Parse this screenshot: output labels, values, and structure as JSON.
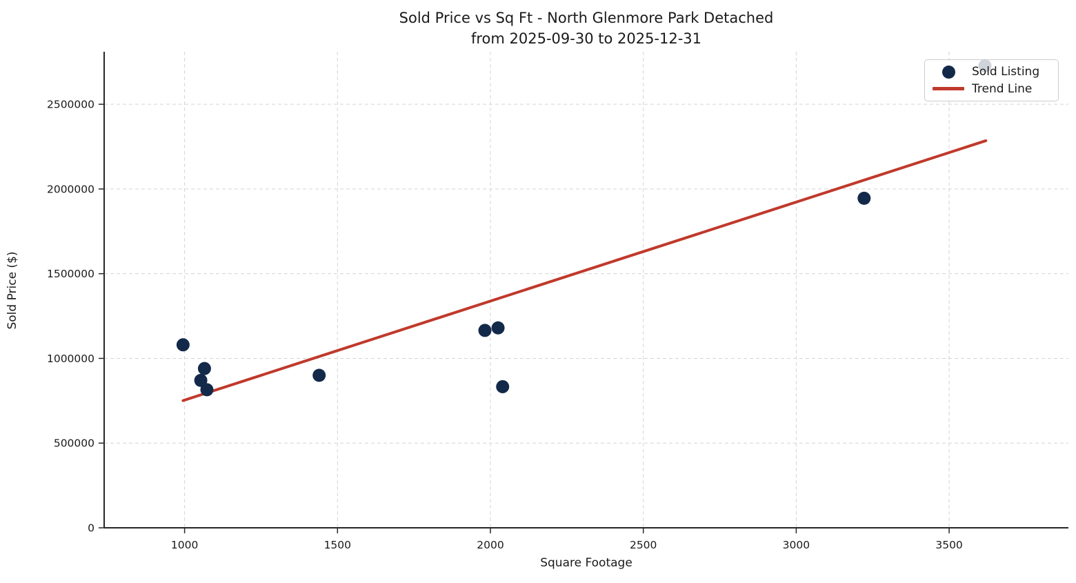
{
  "figure": {
    "title_line1": "Sold Price vs Sq Ft - North Glenmore Park Detached",
    "title_line2": "from 2025-09-30 to 2025-12-31"
  },
  "legend": {
    "position": "upper-right",
    "items": [
      {
        "label": "Sold Listing",
        "marker": "dot-icon",
        "color": "#13294a"
      },
      {
        "label": "Trend Line",
        "marker": "line-icon",
        "color": "#c0392b"
      }
    ]
  },
  "colors": {
    "scatter": "#13294a",
    "trend": "#c0392b",
    "spine": "#262626",
    "grid": "#d4d4d4",
    "text": "#1a1a1a",
    "background": "#ffffff"
  },
  "chart_data": {
    "type": "scatter",
    "title": "Sold Price vs Sq Ft - North Glenmore Park Detached",
    "subtitle": "from 2025-09-30 to 2025-12-31",
    "xlabel": "Square Footage",
    "ylabel": "Sold Price ($)",
    "xlim": [
      737,
      3890
    ],
    "ylim": [
      0,
      2810000
    ],
    "xticks": [
      1000,
      1500,
      2000,
      2500,
      3000,
      3500
    ],
    "yticks": [
      0,
      500000,
      1000000,
      1500000,
      2000000,
      2500000
    ],
    "grid": true,
    "grid_style": "dashed",
    "legend_position": "upper right",
    "series": [
      {
        "name": "Sold Listing",
        "type": "scatter",
        "color": "#13294a",
        "marker_radius": 9.5,
        "points": [
          [
            995,
            1080000
          ],
          [
            1053,
            870000
          ],
          [
            1065,
            940000
          ],
          [
            1073,
            815000
          ],
          [
            1440,
            900000
          ],
          [
            1982,
            1165000
          ],
          [
            2025,
            1180000
          ],
          [
            2040,
            833000
          ],
          [
            3222,
            1945000
          ],
          [
            3617,
            2727000
          ]
        ]
      },
      {
        "name": "Trend Line",
        "type": "line",
        "color": "#c0392b",
        "line_width": 4,
        "points": [
          [
            995,
            751000
          ],
          [
            3620,
            2285000
          ]
        ]
      }
    ]
  }
}
